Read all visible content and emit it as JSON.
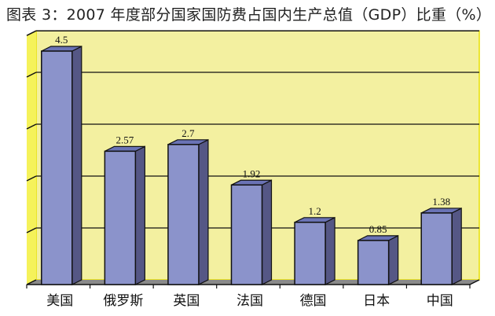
{
  "chart_data": {
    "type": "bar",
    "title": "图表 3：2007 年度部分国家国防费占国内生产总值（GDP）比重（%）",
    "categories": [
      "美国",
      "俄罗斯",
      "英国",
      "法国",
      "德国",
      "日本",
      "中国"
    ],
    "values": [
      4.5,
      2.57,
      2.7,
      1.92,
      1.2,
      0.85,
      1.38
    ],
    "value_labels": [
      "4.5",
      "2.57",
      "2.7",
      "1.92",
      "1.2",
      "0.85",
      "1.38"
    ],
    "xlabel": "",
    "ylabel": "",
    "ylim": [
      0,
      4.8
    ],
    "yticks": [
      0,
      1,
      2,
      3,
      4
    ],
    "grid": true,
    "legend": "none",
    "colors": {
      "wall": "#f3f0a0",
      "wall_side": "#f5f25a",
      "floor": "#8a8a8a",
      "bar_front": "#8b93cb",
      "bar_top": "#6a73b5",
      "bar_side": "#555785"
    }
  }
}
